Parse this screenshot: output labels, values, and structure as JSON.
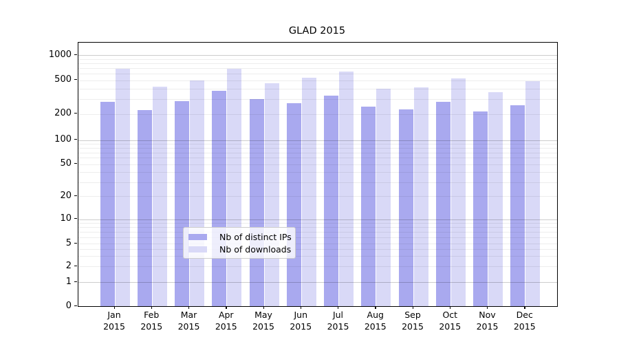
{
  "title": "GLAD 2015",
  "chart_data": {
    "type": "bar",
    "title": "GLAD 2015",
    "categories": [
      "Jan",
      "Feb",
      "Mar",
      "Apr",
      "May",
      "Jun",
      "Jul",
      "Aug",
      "Sep",
      "Oct",
      "Nov",
      "Dec"
    ],
    "category_year": "2015",
    "series": [
      {
        "name": "Nb of distinct IPs",
        "color": "#a9a9ef",
        "values": [
          280,
          220,
          285,
          375,
          300,
          270,
          330,
          245,
          225,
          280,
          215,
          255
        ]
      },
      {
        "name": "Nb of downloads",
        "color": "#d9d9f7",
        "values": [
          680,
          420,
          500,
          690,
          460,
          540,
          640,
          395,
          415,
          525,
          360,
          490
        ]
      }
    ],
    "yscale": "symlog",
    "ylim": [
      0,
      1000
    ],
    "yticks": [
      0,
      1,
      2,
      5,
      10,
      20,
      50,
      100,
      200,
      500,
      1000
    ],
    "grid": "horizontal-log-minor",
    "legend_position": "lower center"
  }
}
